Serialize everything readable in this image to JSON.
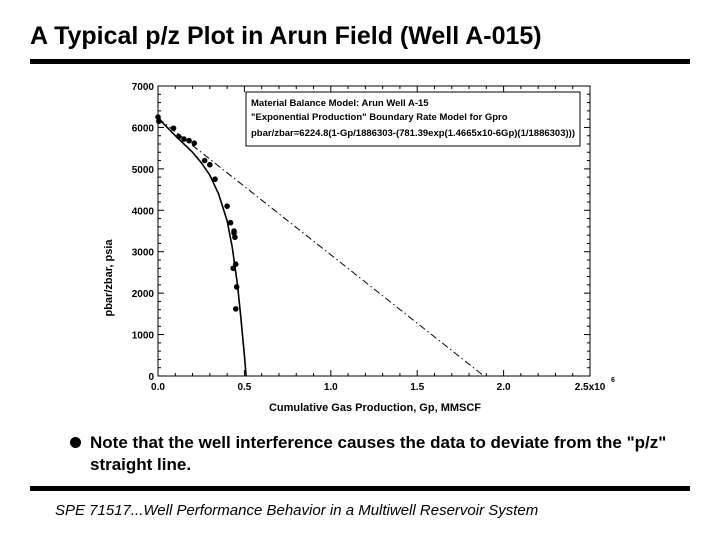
{
  "slide": {
    "title": "A Typical p/z Plot in Arun Field (Well A-015)",
    "bullet": "Note that the well interference causes the data to deviate from the \"p/z\" straight line.",
    "footer": "SPE 71517...Well Performance Behavior in a Multiwell Reservoir System"
  },
  "chart_data": {
    "type": "scatter",
    "xlabel": "Cumulative Gas Production, Gp, MMSCF",
    "ylabel": "pbar/zbar, psia",
    "xlim": [
      0,
      2500000
    ],
    "ylim": [
      0,
      7000
    ],
    "xticks": [
      0,
      500000,
      1000000,
      1500000,
      2000000,
      2500000
    ],
    "xtick_labels": [
      "0.0",
      "0.5",
      "1.0",
      "1.5",
      "2.0",
      "2.5x10"
    ],
    "xtick_exponent": "6",
    "yticks": [
      0,
      1000,
      2000,
      3000,
      4000,
      5000,
      6000,
      7000
    ],
    "ytick_labels": [
      "0",
      "1000",
      "2000",
      "3000",
      "4000",
      "5000",
      "6000",
      "7000"
    ],
    "annotation": [
      "Material Balance Model: Arun Well A-15",
      "\"Exponential Production\" Boundary Rate Model for Gpro",
      "pbar/zbar=6224.8(1-Gp/1886303-(781.39exp(1.4665x10-6Gp)(1/1886303)))"
    ],
    "series": [
      {
        "type": "points",
        "x": [
          0,
          5000,
          90000,
          120000,
          150000,
          180000,
          210000,
          270000,
          300000,
          330000,
          400000,
          420000,
          440000,
          445000,
          440000,
          450000,
          435000,
          455000,
          450000
        ],
        "y": [
          6250,
          6150,
          5980,
          5780,
          5720,
          5680,
          5620,
          5200,
          5100,
          4750,
          4100,
          3700,
          3450,
          3350,
          3500,
          2700,
          2600,
          2150,
          1620
        ]
      },
      {
        "type": "model curve",
        "x": [
          0,
          100000,
          200000,
          250000,
          300000,
          350000,
          400000,
          430000,
          460000,
          480000,
          500000,
          510000
        ],
        "y": [
          6224.8,
          5800,
          5400,
          5150,
          4850,
          4400,
          3750,
          3100,
          2200,
          1400,
          500,
          0
        ]
      },
      {
        "type": "straight line",
        "x": [
          0,
          1886303
        ],
        "y": [
          6224.8,
          0
        ]
      }
    ],
    "colors": {
      "ink": "#000000",
      "plot_bg": "#ffffff"
    },
    "grid": false
  }
}
